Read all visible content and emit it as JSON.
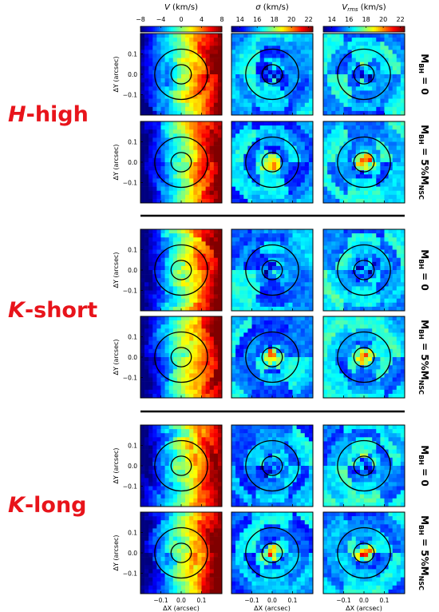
{
  "figure": {
    "column_titles": [
      {
        "symbol": "V",
        "unit": " (km/s)"
      },
      {
        "symbol": "σ",
        "unit": " (km/s)"
      },
      {
        "symbol": "V",
        "sub": "rms",
        "unit": " (km/s)"
      }
    ],
    "colorbars": [
      {
        "ticks": [
          "−8",
          "−4",
          "0",
          "4",
          "8"
        ],
        "range": [
          -8,
          8
        ]
      },
      {
        "ticks": [
          "14",
          "16",
          "18",
          "20",
          "22"
        ],
        "range": [
          13,
          22.5
        ]
      },
      {
        "ticks": [
          "14",
          "16",
          "18",
          "20",
          "22"
        ],
        "range": [
          13,
          22.5
        ]
      }
    ],
    "groups": [
      {
        "label_italic": "H",
        "label_rest": "-high"
      },
      {
        "label_italic": "K",
        "label_rest": "-short"
      },
      {
        "label_italic": "K",
        "label_rest": "-long"
      }
    ],
    "model_labels": [
      {
        "main": "M",
        "sub": "BH",
        "rest": " = 0",
        "sub2": ""
      },
      {
        "main": "M",
        "sub": "BH",
        "rest": " = 5%M",
        "sub2": "NSC"
      }
    ],
    "axes": {
      "xlabel": "ΔX (arcsec)",
      "ylabel": "ΔY (arcsec)",
      "xticks": [
        "−0.1",
        "0.0",
        "0.1"
      ],
      "yticks": [
        "0.1",
        "0.0",
        "−0.1"
      ]
    }
  },
  "chart_data": {
    "type": "heatmap",
    "description_units": "kinematic maps of a nuclear star cluster, arcsec offsets",
    "xlim": [
      -0.2,
      0.2
    ],
    "ylim": [
      -0.2,
      0.2
    ],
    "grid": "off",
    "colormap": "jet",
    "panels": [
      {
        "group": "H-high",
        "model": "M_BH = 0",
        "quantity": "V",
        "range": [
          -8,
          8
        ]
      },
      {
        "group": "H-high",
        "model": "M_BH = 0",
        "quantity": "sigma",
        "range": [
          13,
          22.5
        ]
      },
      {
        "group": "H-high",
        "model": "M_BH = 0",
        "quantity": "Vrms",
        "range": [
          13,
          22.5
        ]
      },
      {
        "group": "H-high",
        "model": "M_BH = 5%M_NSC",
        "quantity": "V",
        "range": [
          -8,
          8
        ]
      },
      {
        "group": "H-high",
        "model": "M_BH = 5%M_NSC",
        "quantity": "sigma",
        "range": [
          13,
          22.5
        ]
      },
      {
        "group": "H-high",
        "model": "M_BH = 5%M_NSC",
        "quantity": "Vrms",
        "range": [
          13,
          22.5
        ]
      },
      {
        "group": "K-short",
        "model": "M_BH = 0",
        "quantity": "V",
        "range": [
          -8,
          8
        ]
      },
      {
        "group": "K-short",
        "model": "M_BH = 0",
        "quantity": "sigma",
        "range": [
          13,
          22.5
        ]
      },
      {
        "group": "K-short",
        "model": "M_BH = 0",
        "quantity": "Vrms",
        "range": [
          13,
          22.5
        ]
      },
      {
        "group": "K-short",
        "model": "M_BH = 5%M_NSC",
        "quantity": "V",
        "range": [
          -8,
          8
        ]
      },
      {
        "group": "K-short",
        "model": "M_BH = 5%M_NSC",
        "quantity": "sigma",
        "range": [
          13,
          22.5
        ]
      },
      {
        "group": "K-short",
        "model": "M_BH = 5%M_NSC",
        "quantity": "Vrms",
        "range": [
          13,
          22.5
        ]
      },
      {
        "group": "K-long",
        "model": "M_BH = 0",
        "quantity": "V",
        "range": [
          -8,
          8
        ]
      },
      {
        "group": "K-long",
        "model": "M_BH = 0",
        "quantity": "sigma",
        "range": [
          13,
          22.5
        ]
      },
      {
        "group": "K-long",
        "model": "M_BH = 0",
        "quantity": "Vrms",
        "range": [
          13,
          22.5
        ]
      },
      {
        "group": "K-long",
        "model": "M_BH = 5%M_NSC",
        "quantity": "V",
        "range": [
          -8,
          8
        ]
      },
      {
        "group": "K-long",
        "model": "M_BH = 5%M_NSC",
        "quantity": "sigma",
        "range": [
          13,
          22.5
        ]
      },
      {
        "group": "K-long",
        "model": "M_BH = 5%M_NSC",
        "quantity": "Vrms",
        "range": [
          13,
          22.5
        ]
      }
    ],
    "contours_arcsec": [
      0.05,
      0.13
    ]
  }
}
